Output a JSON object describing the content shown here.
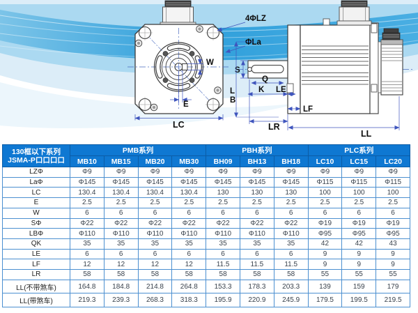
{
  "page": {
    "accent_wave": "#2f9fdb",
    "header_bg": "#0f78d2",
    "grid_color": "#4b8fd0"
  },
  "front_view": {
    "labels": {
      "holes_callout": "4ΦLZ",
      "bolt_circle": "ΦLa",
      "keyway_width": "W",
      "e_offset": "E",
      "flange_width": "LC"
    }
  },
  "side_view": {
    "labels": {
      "shaft_dia": "S",
      "keyway_len": "Q",
      "k_dim": "K",
      "le_dim": "LE",
      "l_dim": "L",
      "b_dim": "B",
      "lf_dim": "LF",
      "shaft_len": "LR",
      "total_len": "LL"
    }
  },
  "table": {
    "corner": {
      "line1": "130框以下系列",
      "line2": "JSMA-P口口口口"
    },
    "groups": [
      {
        "label": "PMB系列",
        "span": 4
      },
      {
        "label": "PBH系列",
        "span": 3
      },
      {
        "label": "PLC系列",
        "span": 3
      }
    ],
    "models": [
      "MB10",
      "MB15",
      "MB20",
      "MB30",
      "BH09",
      "BH13",
      "BH18",
      "LC10",
      "LC15",
      "LC20"
    ],
    "rows": [
      {
        "label": "LZΦ",
        "values": [
          "Φ9",
          "Φ9",
          "Φ9",
          "Φ9",
          "Φ9",
          "Φ9",
          "Φ9",
          "Φ9",
          "Φ9",
          "Φ9"
        ]
      },
      {
        "label": "LaΦ",
        "values": [
          "Φ145",
          "Φ145",
          "Φ145",
          "Φ145",
          "Φ145",
          "Φ145",
          "Φ145",
          "Φ115",
          "Φ115",
          "Φ115"
        ]
      },
      {
        "label": "LC",
        "values": [
          "130.4",
          "130.4",
          "130.4",
          "130.4",
          "130",
          "130",
          "130",
          "100",
          "100",
          "100"
        ]
      },
      {
        "label": "E",
        "values": [
          "2.5",
          "2.5",
          "2.5",
          "2.5",
          "2.5",
          "2.5",
          "2.5",
          "2.5",
          "2.5",
          "2.5"
        ]
      },
      {
        "label": "W",
        "values": [
          "6",
          "6",
          "6",
          "6",
          "6",
          "6",
          "6",
          "6",
          "6",
          "6"
        ]
      },
      {
        "label": "SΦ",
        "values": [
          "Φ22",
          "Φ22",
          "Φ22",
          "Φ22",
          "Φ22",
          "Φ22",
          "Φ22",
          "Φ19",
          "Φ19",
          "Φ19"
        ]
      },
      {
        "label": "LBΦ",
        "values": [
          "Φ110",
          "Φ110",
          "Φ110",
          "Φ110",
          "Φ110",
          "Φ110",
          "Φ110",
          "Φ95",
          "Φ95",
          "Φ95"
        ]
      },
      {
        "label": "QK",
        "values": [
          "35",
          "35",
          "35",
          "35",
          "35",
          "35",
          "35",
          "42",
          "42",
          "43"
        ]
      },
      {
        "label": "LE",
        "values": [
          "6",
          "6",
          "6",
          "6",
          "6",
          "6",
          "6",
          "9",
          "9",
          "9"
        ]
      },
      {
        "label": "LF",
        "values": [
          "12",
          "12",
          "12",
          "12",
          "11.5",
          "11.5",
          "11.5",
          "9",
          "9",
          "9"
        ]
      },
      {
        "label": "LR",
        "values": [
          "58",
          "58",
          "58",
          "58",
          "58",
          "58",
          "58",
          "55",
          "55",
          "55"
        ]
      },
      {
        "label": "LL(不带煞车)",
        "values": [
          "164.8",
          "184.8",
          "214.8",
          "264.8",
          "153.3",
          "178.3",
          "203.3",
          "139",
          "159",
          "179"
        ]
      },
      {
        "label": "LL(带煞车)",
        "values": [
          "219.3",
          "239.3",
          "268.3",
          "318.3",
          "195.9",
          "220.9",
          "245.9",
          "179.5",
          "199.5",
          "219.5"
        ]
      }
    ]
  }
}
